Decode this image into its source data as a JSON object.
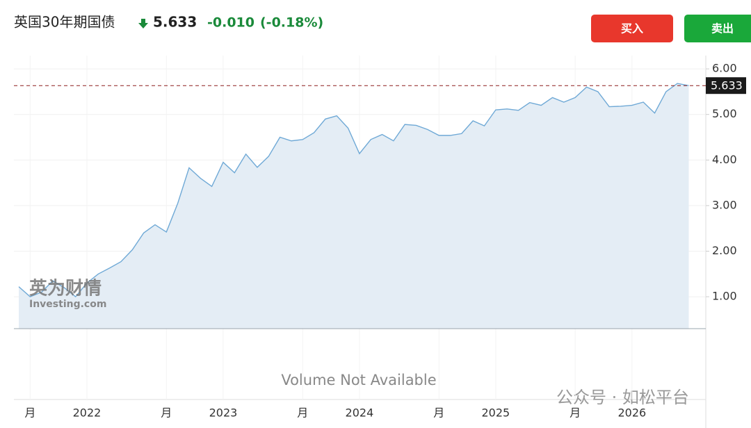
{
  "chart_data": {
    "type": "area",
    "title": "英国30年期国债",
    "change": "-0.010",
    "change_percent": "(-0.18%)",
    "buttons": [
      "买入",
      "卖出"
    ],
    "annotation": "Volume Not Available",
    "watermark": [
      "英为财情",
      "Investing.com"
    ],
    "footer": "公众号 · 如松平台",
    "categories": [
      null,
      "月",
      null,
      null,
      null,
      null,
      "2022",
      null,
      null,
      null,
      null,
      null,
      null,
      "月",
      null,
      null,
      null,
      null,
      "2023",
      null,
      null,
      null,
      null,
      null,
      null,
      "月",
      null,
      null,
      null,
      null,
      "2024",
      null,
      null,
      null,
      null,
      null,
      null,
      "月",
      null,
      null,
      null,
      null,
      "2025",
      null,
      null,
      null,
      null,
      null,
      null,
      "月",
      null,
      null,
      null,
      null,
      "2026",
      null,
      null,
      null,
      null,
      null
    ],
    "values": [
      1.22,
      1.0,
      1.1,
      1.35,
      1.2,
      1.0,
      1.3,
      1.5,
      1.63,
      1.77,
      2.03,
      2.4,
      2.58,
      2.42,
      3.05,
      3.83,
      3.6,
      3.42,
      3.95,
      3.72,
      4.13,
      3.84,
      4.08,
      4.5,
      4.42,
      4.45,
      4.6,
      4.9,
      4.97,
      4.7,
      4.14,
      4.45,
      4.56,
      4.42,
      4.78,
      4.76,
      4.67,
      4.54,
      4.54,
      4.58,
      4.86,
      4.75,
      5.1,
      5.12,
      5.09,
      5.26,
      5.2,
      5.37,
      5.27,
      5.37,
      5.6,
      5.5,
      5.17,
      5.18,
      5.2,
      5.27,
      5.03,
      5.5,
      5.68,
      5.633
    ],
    "color": "#6fa9d6",
    "ylim": [
      0.3,
      6.2
    ],
    "yticks": [
      {
        "value": 1,
        "label": "1.00"
      },
      {
        "value": 2,
        "label": "2.00"
      },
      {
        "value": 3,
        "label": "3.00"
      },
      {
        "value": 4,
        "label": "4.00"
      },
      {
        "value": 5,
        "label": "5.00"
      },
      {
        "value": 6,
        "label": "6.00"
      }
    ],
    "grid": true
  }
}
